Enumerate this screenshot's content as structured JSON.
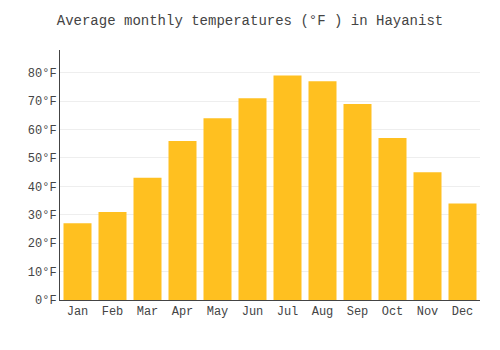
{
  "chart_data": {
    "type": "bar",
    "title": "Average monthly temperatures (°F ) in Hayanist",
    "categories": [
      "Jan",
      "Feb",
      "Mar",
      "Apr",
      "May",
      "Jun",
      "Jul",
      "Aug",
      "Sep",
      "Oct",
      "Nov",
      "Dec"
    ],
    "values": [
      27,
      31,
      43,
      56,
      64,
      71,
      79,
      77,
      69,
      57,
      45,
      34
    ],
    "color": "#FFC020",
    "ylim": [
      0,
      88
    ],
    "yticks": [
      {
        "value": 0,
        "label": "0°F"
      },
      {
        "value": 10,
        "label": "10°F"
      },
      {
        "value": 20,
        "label": "20°F"
      },
      {
        "value": 30,
        "label": "30°F"
      },
      {
        "value": 40,
        "label": "40°F"
      },
      {
        "value": 50,
        "label": "50°F"
      },
      {
        "value": 60,
        "label": "60°F"
      },
      {
        "value": 70,
        "label": "70°F"
      },
      {
        "value": 80,
        "label": "80°F"
      }
    ],
    "grid": true
  }
}
